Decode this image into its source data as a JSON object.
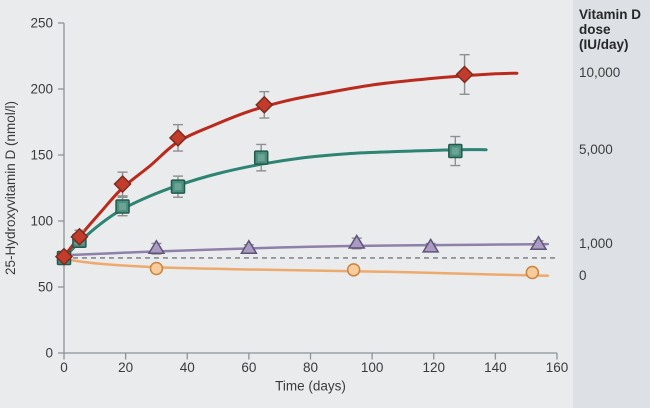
{
  "figure": {
    "background": "#e9ebed",
    "panel_background": "#dde1e5"
  },
  "side_panel": {
    "header_lines": [
      "Vitamin D",
      "dose",
      "(IU/day)"
    ]
  },
  "chart_data": {
    "type": "line",
    "title": "",
    "xlabel": "Time (days)",
    "ylabel": "25-Hydroxyvitamin D (nmol/l)",
    "xlim": [
      0,
      160
    ],
    "ylim": [
      0,
      250
    ],
    "xticks": [
      0,
      20,
      40,
      60,
      80,
      100,
      120,
      140,
      160
    ],
    "yticks": [
      0,
      50,
      100,
      150,
      200,
      250
    ],
    "grid": false,
    "legend_position": "right-margin",
    "axis_color": "#8d9399",
    "tick_text_color": "#3a3b3d",
    "error_bar_color": "#8f8f8f",
    "baseline": {
      "y": 72,
      "style": "dashed",
      "color": "#75797d"
    },
    "series": [
      {
        "name": "10,000 IU/day",
        "dose_label": "10,000",
        "marker": "diamond",
        "line_color": "#ba2a1d",
        "line_width": 3,
        "marker_fill": "#c23b2b",
        "marker_stroke": "#7c2d22",
        "points": [
          [
            0,
            73,
            0
          ],
          [
            5,
            88,
            5
          ],
          [
            19,
            128,
            9
          ],
          [
            37,
            163,
            10
          ],
          [
            65,
            188,
            10
          ],
          [
            130,
            211,
            15
          ]
        ],
        "curve": [
          [
            0,
            73
          ],
          [
            5,
            88
          ],
          [
            12,
            107
          ],
          [
            19,
            125
          ],
          [
            28,
            142
          ],
          [
            37,
            160
          ],
          [
            48,
            172
          ],
          [
            60,
            183
          ],
          [
            72,
            191
          ],
          [
            85,
            197
          ],
          [
            100,
            203
          ],
          [
            115,
            207
          ],
          [
            130,
            210
          ],
          [
            140,
            211.5
          ],
          [
            147,
            212
          ]
        ]
      },
      {
        "name": "5,000 IU/day",
        "dose_label": "5,000",
        "marker": "square",
        "line_color": "#2e8373",
        "line_width": 3,
        "marker_fill": "#4b8f7f",
        "marker_stroke": "#24594e",
        "points": [
          [
            0,
            72,
            0
          ],
          [
            5,
            85,
            4
          ],
          [
            19,
            111,
            7
          ],
          [
            37,
            126,
            8
          ],
          [
            64,
            148,
            10
          ],
          [
            127,
            153,
            11
          ]
        ],
        "curve": [
          [
            0,
            72
          ],
          [
            5,
            84
          ],
          [
            12,
            98
          ],
          [
            19,
            109
          ],
          [
            28,
            119
          ],
          [
            37,
            127
          ],
          [
            50,
            136
          ],
          [
            64,
            143
          ],
          [
            78,
            148
          ],
          [
            92,
            151
          ],
          [
            106,
            152.5
          ],
          [
            120,
            153.5
          ],
          [
            128,
            154
          ],
          [
            137,
            154
          ]
        ]
      },
      {
        "name": "1,000 IU/day",
        "dose_label": "1,000",
        "marker": "triangle",
        "line_color": "#8e80a8",
        "line_width": 2.5,
        "marker_fill": "#a99bc1",
        "marker_stroke": "#5f5377",
        "points": [
          [
            30,
            79,
            4
          ],
          [
            60,
            79,
            3
          ],
          [
            95,
            83,
            4
          ],
          [
            119,
            80,
            3
          ],
          [
            154,
            82,
            3
          ]
        ],
        "curve": [
          [
            0,
            74
          ],
          [
            25,
            76.5
          ],
          [
            50,
            78.5
          ],
          [
            80,
            80.5
          ],
          [
            110,
            81.5
          ],
          [
            135,
            82
          ],
          [
            157,
            82.5
          ]
        ]
      },
      {
        "name": "0 IU/day",
        "dose_label": "0",
        "marker": "circle",
        "line_color": "#edaa6d",
        "line_width": 2.5,
        "marker_fill": "#f7cb9b",
        "marker_stroke": "#c8853f",
        "points": [
          [
            30,
            64,
            3
          ],
          [
            94,
            63,
            3
          ],
          [
            152,
            61,
            3
          ]
        ],
        "curve": [
          [
            0,
            71
          ],
          [
            12,
            67.5
          ],
          [
            30,
            65
          ],
          [
            55,
            63.5
          ],
          [
            80,
            62.5
          ],
          [
            105,
            61.5
          ],
          [
            130,
            60
          ],
          [
            157,
            58.5
          ]
        ]
      }
    ]
  }
}
